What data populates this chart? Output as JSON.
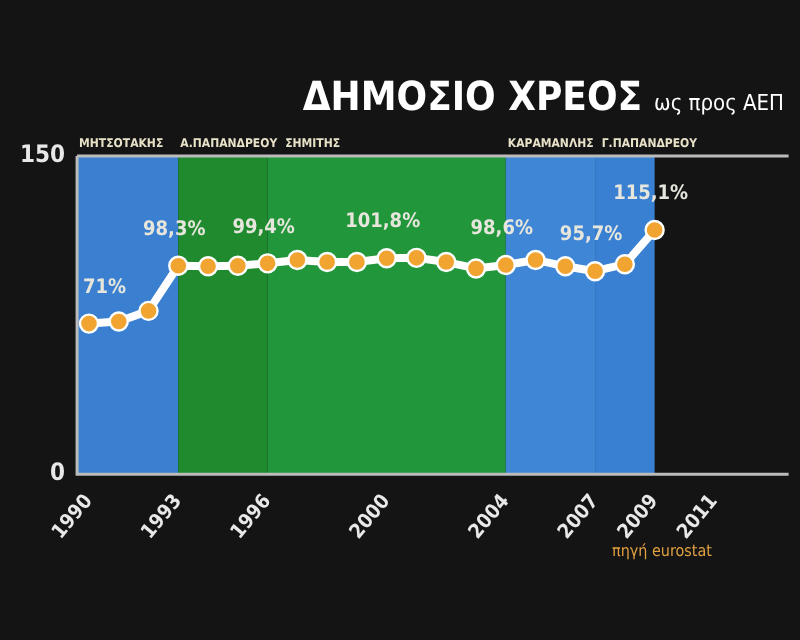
{
  "chart_data": {
    "type": "line",
    "title": "ΔΗΜΟΣΙΟ ΧΡΕΟΣ",
    "subtitle": "ως προς ΑΕΠ",
    "x": [
      1990,
      1991,
      1992,
      1993,
      1994,
      1995,
      1996,
      1997,
      1998,
      1999,
      2000,
      2001,
      2002,
      2003,
      2004,
      2005,
      2006,
      2007,
      2008,
      2009
    ],
    "series": [
      {
        "color": "#f2a431",
        "values": [
          71,
          72,
          77,
          98.3,
          98,
          98.3,
          99.4,
          101,
          100,
          100,
          101.8,
          102,
          100,
          97,
          98.6,
          101,
          98,
          95.7,
          99,
          115.1
        ],
        "value_labels": [
          "71%",
          null,
          null,
          "98,3%",
          null,
          null,
          "99,4%",
          null,
          null,
          null,
          "101,8%",
          null,
          null,
          null,
          "98,6%",
          null,
          null,
          "95,7%",
          null,
          "115,1%"
        ]
      }
    ],
    "xlim": [
      1989.6,
      2013.5
    ],
    "xticks": [
      1990,
      1993,
      1996,
      2000,
      2004,
      2007,
      2009,
      2011
    ],
    "ylim": [
      0,
      150
    ],
    "yticks": [
      0,
      150
    ],
    "bands": [
      {
        "axis": "x",
        "from": 1989.6,
        "to": 1993,
        "label": "ΜΗΤΣΟΤΑΚΗΣ",
        "color": "#3a7fd0"
      },
      {
        "axis": "x",
        "from": 1993,
        "to": 1996,
        "label": "Α.ΠΑΠΑΝΔΡΕΟΥ",
        "color": "#1f8a2e"
      },
      {
        "axis": "x",
        "from": 1996,
        "to": 2004,
        "label": "ΣΗΜΙΤΗΣ",
        "color": "#22963a"
      },
      {
        "axis": "x",
        "from": 2004,
        "to": 2007,
        "label": "ΚΑΡΑΜΑΝΛΗΣ",
        "color": "#3f86d6"
      },
      {
        "axis": "x",
        "from": 2007,
        "to": 2009,
        "label": "Γ.ΠΑΠΑΝΔΡΕΟΥ",
        "color": "#3a80d2"
      }
    ],
    "annotations": [
      "πηγή eurostat"
    ],
    "legend": false,
    "marker": "circle",
    "line_style": "solid"
  }
}
